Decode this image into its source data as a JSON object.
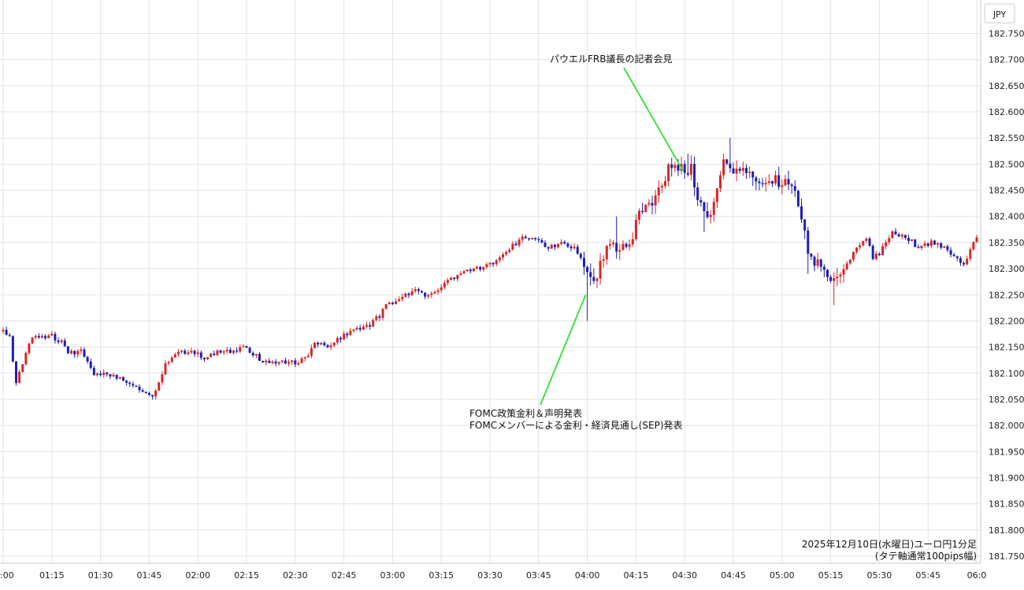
{
  "chart_data": {
    "type": "candlestick",
    "currency_label": "JPY",
    "ylim": [
      181.75,
      182.75
    ],
    "y_ticks": [
      "182.750",
      "182.700",
      "182.650",
      "182.600",
      "182.550",
      "182.500",
      "182.450",
      "182.400",
      "182.350",
      "182.300",
      "182.250",
      "182.200",
      "182.150",
      "182.100",
      "182.050",
      "182.000",
      "181.950",
      "181.900",
      "181.850",
      "181.800",
      "181.750"
    ],
    "x_ticks": [
      {
        "t": 0,
        "label": ":00"
      },
      {
        "t": 15,
        "label": "01:15"
      },
      {
        "t": 30,
        "label": "01:30"
      },
      {
        "t": 45,
        "label": "01:45"
      },
      {
        "t": 60,
        "label": "02:00"
      },
      {
        "t": 75,
        "label": "02:15"
      },
      {
        "t": 90,
        "label": "02:30"
      },
      {
        "t": 105,
        "label": "02:45"
      },
      {
        "t": 120,
        "label": "03:00"
      },
      {
        "t": 135,
        "label": "03:15"
      },
      {
        "t": 150,
        "label": "03:30"
      },
      {
        "t": 165,
        "label": "03:45"
      },
      {
        "t": 180,
        "label": "04:00"
      },
      {
        "t": 195,
        "label": "04:15"
      },
      {
        "t": 210,
        "label": "04:30"
      },
      {
        "t": 225,
        "label": "04:45"
      },
      {
        "t": 240,
        "label": "05:00"
      },
      {
        "t": 255,
        "label": "05:15"
      },
      {
        "t": 270,
        "label": "05:30"
      },
      {
        "t": 285,
        "label": "05:45"
      },
      {
        "t": 300,
        "label": "06:0"
      }
    ],
    "anchors": [
      [
        0,
        182.18
      ],
      [
        2,
        182.17
      ],
      [
        4,
        182.08
      ],
      [
        6,
        182.12
      ],
      [
        8,
        182.16
      ],
      [
        10,
        182.17
      ],
      [
        14,
        182.17
      ],
      [
        18,
        182.16
      ],
      [
        20,
        182.14
      ],
      [
        24,
        182.14
      ],
      [
        28,
        182.1
      ],
      [
        32,
        182.1
      ],
      [
        36,
        182.09
      ],
      [
        40,
        182.08
      ],
      [
        44,
        182.06
      ],
      [
        46,
        182.06
      ],
      [
        48,
        182.08
      ],
      [
        50,
        182.12
      ],
      [
        54,
        182.14
      ],
      [
        58,
        182.14
      ],
      [
        62,
        182.13
      ],
      [
        66,
        182.14
      ],
      [
        70,
        182.14
      ],
      [
        74,
        182.15
      ],
      [
        78,
        182.13
      ],
      [
        82,
        182.12
      ],
      [
        86,
        182.12
      ],
      [
        90,
        182.12
      ],
      [
        94,
        182.13
      ],
      [
        96,
        182.16
      ],
      [
        100,
        182.15
      ],
      [
        104,
        182.17
      ],
      [
        108,
        182.18
      ],
      [
        112,
        182.19
      ],
      [
        116,
        182.21
      ],
      [
        118,
        182.23
      ],
      [
        122,
        182.24
      ],
      [
        126,
        182.26
      ],
      [
        130,
        182.25
      ],
      [
        132,
        182.25
      ],
      [
        136,
        182.27
      ],
      [
        140,
        182.29
      ],
      [
        144,
        182.3
      ],
      [
        148,
        182.3
      ],
      [
        152,
        182.32
      ],
      [
        156,
        182.34
      ],
      [
        160,
        182.36
      ],
      [
        164,
        182.36
      ],
      [
        168,
        182.34
      ],
      [
        172,
        182.35
      ],
      [
        176,
        182.34
      ],
      [
        180,
        182.3
      ],
      [
        182,
        182.27
      ],
      [
        186,
        182.34
      ],
      [
        190,
        182.34
      ],
      [
        194,
        182.36
      ],
      [
        196,
        182.42
      ],
      [
        200,
        182.41
      ],
      [
        202,
        182.45
      ],
      [
        205,
        182.49
      ],
      [
        208,
        182.49
      ],
      [
        212,
        182.49
      ],
      [
        214,
        182.44
      ],
      [
        216,
        182.41
      ],
      [
        218,
        182.4
      ],
      [
        222,
        182.5
      ],
      [
        226,
        182.49
      ],
      [
        230,
        182.48
      ],
      [
        234,
        182.46
      ],
      [
        238,
        182.47
      ],
      [
        242,
        182.46
      ],
      [
        244,
        182.45
      ],
      [
        246,
        182.4
      ],
      [
        248,
        182.33
      ],
      [
        252,
        182.3
      ],
      [
        254,
        182.28
      ],
      [
        258,
        182.29
      ],
      [
        262,
        182.33
      ],
      [
        266,
        182.36
      ],
      [
        268,
        182.32
      ],
      [
        270,
        182.33
      ],
      [
        274,
        182.37
      ],
      [
        278,
        182.36
      ],
      [
        282,
        182.34
      ],
      [
        286,
        182.35
      ],
      [
        290,
        182.34
      ],
      [
        294,
        182.32
      ],
      [
        296,
        182.31
      ],
      [
        300,
        182.36
      ]
    ],
    "annotations": [
      {
        "text": "パウエルFRB議長の記者会見",
        "target_t": 210,
        "target_y": 182.49
      },
      {
        "text": "FOMC政策金利＆声明発表",
        "target_t": 180,
        "target_y": 182.25
      },
      {
        "text": "FOMCメンバーによる金利・経済見通し(SEP)発表",
        "target_t": 180,
        "target_y": 182.25
      }
    ],
    "caption_line1": "2025年12月10日(水曜日)ユーロ円1分足",
    "caption_line2": "(タテ軸通常100pips幅)",
    "colors": {
      "up": "#d62728",
      "down": "#1f1fb4",
      "grid": "#dfe3ea",
      "annotation_line": "#44e044",
      "axis": "#c8c8c8"
    },
    "grid": true
  }
}
